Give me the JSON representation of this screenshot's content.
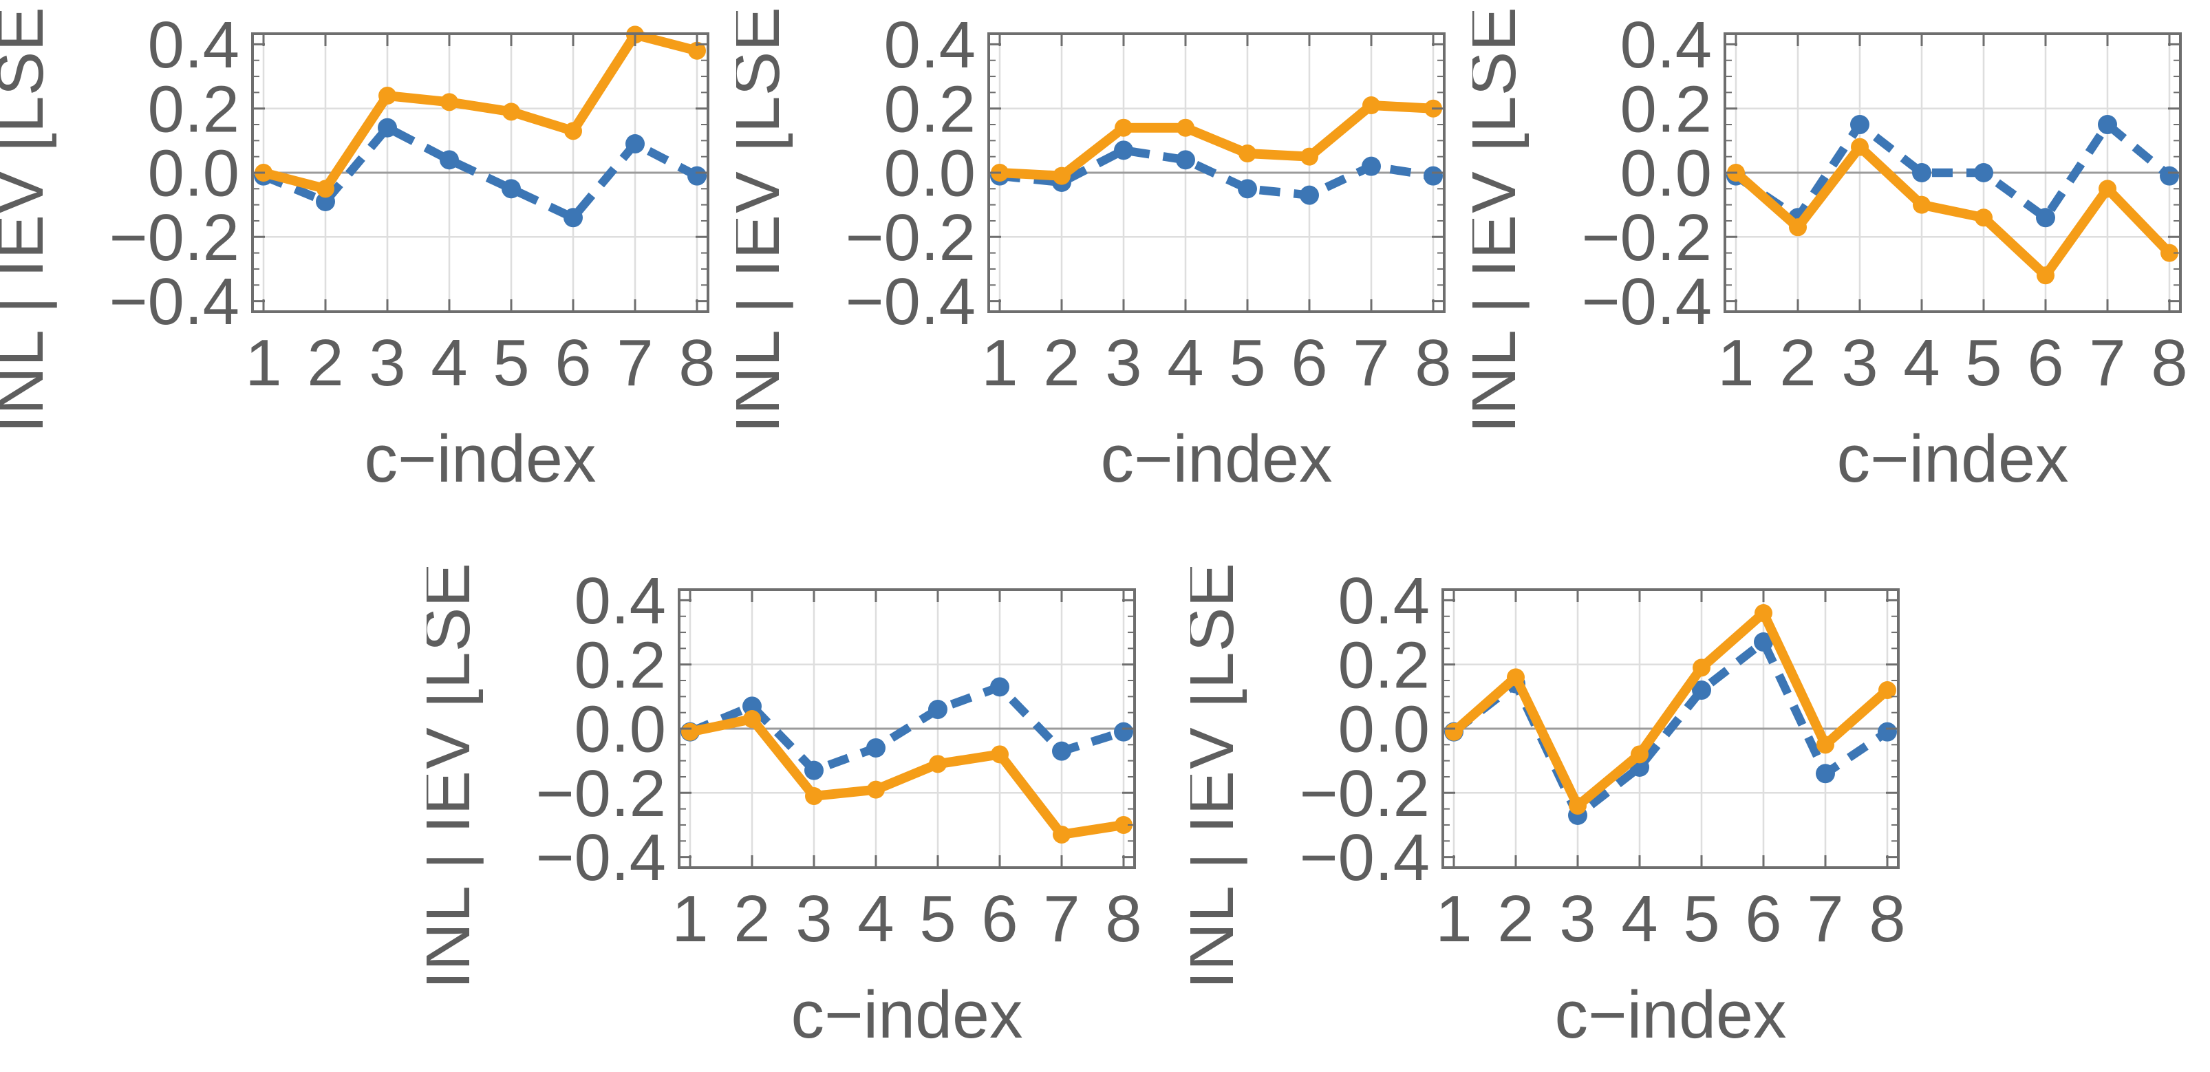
{
  "figure": {
    "background": "#ffffff",
    "colors": {
      "solid_series": "#F59D18",
      "dashed_series": "#3C76B5",
      "axis_text": "#5E5E5E",
      "frame": "#6E6E6E",
      "grid": "#DEDEDE",
      "zero_line": "#9B9B9B"
    },
    "axes_shared": {
      "xlabel": "c−index",
      "ylabel": "INL | IEV [LSE",
      "xtick_labels": [
        "1",
        "2",
        "3",
        "4",
        "5",
        "6",
        "7",
        "8"
      ],
      "ytick_labels": [
        "0.4",
        "0.2",
        "0.0",
        "−0.2",
        "−0.4"
      ],
      "ytick_values": [
        0.4,
        0.2,
        0.0,
        -0.2,
        -0.4
      ],
      "ytick_minor_step": 0.05,
      "ylim": [
        -0.433,
        0.433
      ],
      "xlim": [
        0.82,
        8.18
      ],
      "grid_h_values": [
        0.2,
        -0.2
      ],
      "grid_v_values": [
        1,
        2,
        3,
        4,
        5,
        6,
        7,
        8
      ],
      "zero_line_value": 0.0,
      "grid": "on",
      "legend": "none"
    }
  },
  "chart_data": [
    {
      "id": "top-left",
      "type": "line",
      "title": "",
      "xlabel": "c−index",
      "ylabel": "INL | IEV [LSE",
      "x": [
        1,
        2,
        3,
        4,
        5,
        6,
        7,
        8
      ],
      "ylim": [
        -0.433,
        0.433
      ],
      "series": [
        {
          "name": "dashed-blue",
          "style": "dashed",
          "color": "#3C76B5",
          "values": [
            -0.01,
            -0.09,
            0.14,
            0.04,
            -0.05,
            -0.14,
            0.09,
            -0.01
          ]
        },
        {
          "name": "solid-orange",
          "style": "solid",
          "color": "#F59D18",
          "values": [
            0.0,
            -0.05,
            0.24,
            0.22,
            0.19,
            0.13,
            0.43,
            0.38
          ]
        }
      ]
    },
    {
      "id": "top-middle",
      "type": "line",
      "title": "",
      "xlabel": "c−index",
      "ylabel": "INL | IEV [LSE",
      "x": [
        1,
        2,
        3,
        4,
        5,
        6,
        7,
        8
      ],
      "ylim": [
        -0.433,
        0.433
      ],
      "series": [
        {
          "name": "dashed-blue",
          "style": "dashed",
          "color": "#3C76B5",
          "values": [
            -0.01,
            -0.03,
            0.07,
            0.04,
            -0.05,
            -0.07,
            0.02,
            -0.01
          ]
        },
        {
          "name": "solid-orange",
          "style": "solid",
          "color": "#F59D18",
          "values": [
            0.0,
            -0.01,
            0.14,
            0.14,
            0.06,
            0.05,
            0.21,
            0.2
          ]
        }
      ]
    },
    {
      "id": "top-right",
      "type": "line",
      "title": "",
      "xlabel": "c−index",
      "ylabel": "INL | IEV [LSE",
      "x": [
        1,
        2,
        3,
        4,
        5,
        6,
        7,
        8
      ],
      "ylim": [
        -0.433,
        0.433
      ],
      "series": [
        {
          "name": "dashed-blue",
          "style": "dashed",
          "color": "#3C76B5",
          "values": [
            -0.01,
            -0.14,
            0.15,
            0.0,
            0.0,
            -0.14,
            0.15,
            -0.01
          ]
        },
        {
          "name": "solid-orange",
          "style": "solid",
          "color": "#F59D18",
          "values": [
            0.0,
            -0.17,
            0.08,
            -0.1,
            -0.14,
            -0.32,
            -0.05,
            -0.25
          ]
        }
      ]
    },
    {
      "id": "bottom-left",
      "type": "line",
      "title": "",
      "xlabel": "c−index",
      "ylabel": "INL | IEV [LSE",
      "x": [
        1,
        2,
        3,
        4,
        5,
        6,
        7,
        8
      ],
      "ylim": [
        -0.433,
        0.433
      ],
      "series": [
        {
          "name": "dashed-blue",
          "style": "dashed",
          "color": "#3C76B5",
          "values": [
            -0.01,
            0.07,
            -0.13,
            -0.06,
            0.06,
            0.13,
            -0.07,
            -0.01
          ]
        },
        {
          "name": "solid-orange",
          "style": "solid",
          "color": "#F59D18",
          "values": [
            -0.01,
            0.03,
            -0.21,
            -0.19,
            -0.11,
            -0.08,
            -0.33,
            -0.3
          ]
        }
      ]
    },
    {
      "id": "bottom-right",
      "type": "line",
      "title": "",
      "xlabel": "c−index",
      "ylabel": "INL | IEV [LSE",
      "x": [
        1,
        2,
        3,
        4,
        5,
        6,
        7,
        8
      ],
      "ylim": [
        -0.433,
        0.433
      ],
      "series": [
        {
          "name": "dashed-blue",
          "style": "dashed",
          "color": "#3C76B5",
          "values": [
            -0.01,
            0.14,
            -0.27,
            -0.12,
            0.12,
            0.27,
            -0.14,
            -0.01
          ]
        },
        {
          "name": "solid-orange",
          "style": "solid",
          "color": "#F59D18",
          "values": [
            -0.01,
            0.16,
            -0.24,
            -0.08,
            0.19,
            0.36,
            -0.05,
            0.12
          ]
        }
      ]
    }
  ]
}
